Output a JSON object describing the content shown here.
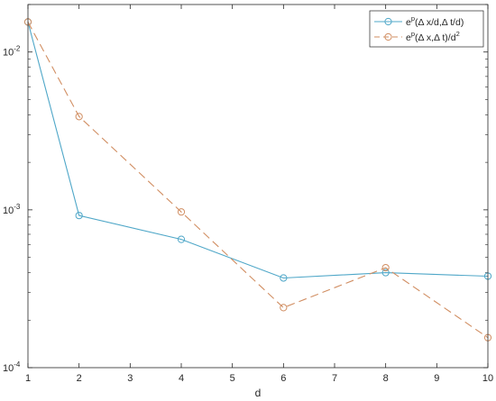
{
  "chart_data": {
    "type": "line",
    "title": "",
    "xlabel": "d",
    "ylabel": "",
    "xlim": [
      1,
      10
    ],
    "ylim": [
      0.0001,
      0.02
    ],
    "yscale": "log",
    "grid": false,
    "legend_position": "top-right",
    "x": [
      1,
      2,
      4,
      6,
      8,
      10
    ],
    "x_ticks": [
      1,
      2,
      3,
      4,
      5,
      6,
      7,
      8,
      9,
      10
    ],
    "y_ticks": [
      {
        "value": 0.01,
        "base": "10",
        "exp": "-2"
      },
      {
        "value": 0.001,
        "base": "10",
        "exp": "-3"
      },
      {
        "value": 0.0001,
        "base": "10",
        "exp": "-4"
      }
    ],
    "series": [
      {
        "legend": {
          "pre": "e",
          "sup": "p",
          "post": "(Δ x/d,Δ t/d)",
          "post_sup": ""
        },
        "color": "#4fa7c8",
        "dash": "solid",
        "marker": "circle",
        "values": [
          0.0155,
          0.00092,
          0.00065,
          0.00037,
          0.0004,
          0.00038
        ]
      },
      {
        "legend": {
          "pre": "e",
          "sup": "p",
          "post": "(Δ x,Δ t)/d",
          "post_sup": "2"
        },
        "color": "#d18e62",
        "dash": "dashed",
        "marker": "circle",
        "values": [
          0.0155,
          0.0039,
          0.00097,
          0.00024,
          0.00043,
          0.000155
        ]
      }
    ]
  }
}
